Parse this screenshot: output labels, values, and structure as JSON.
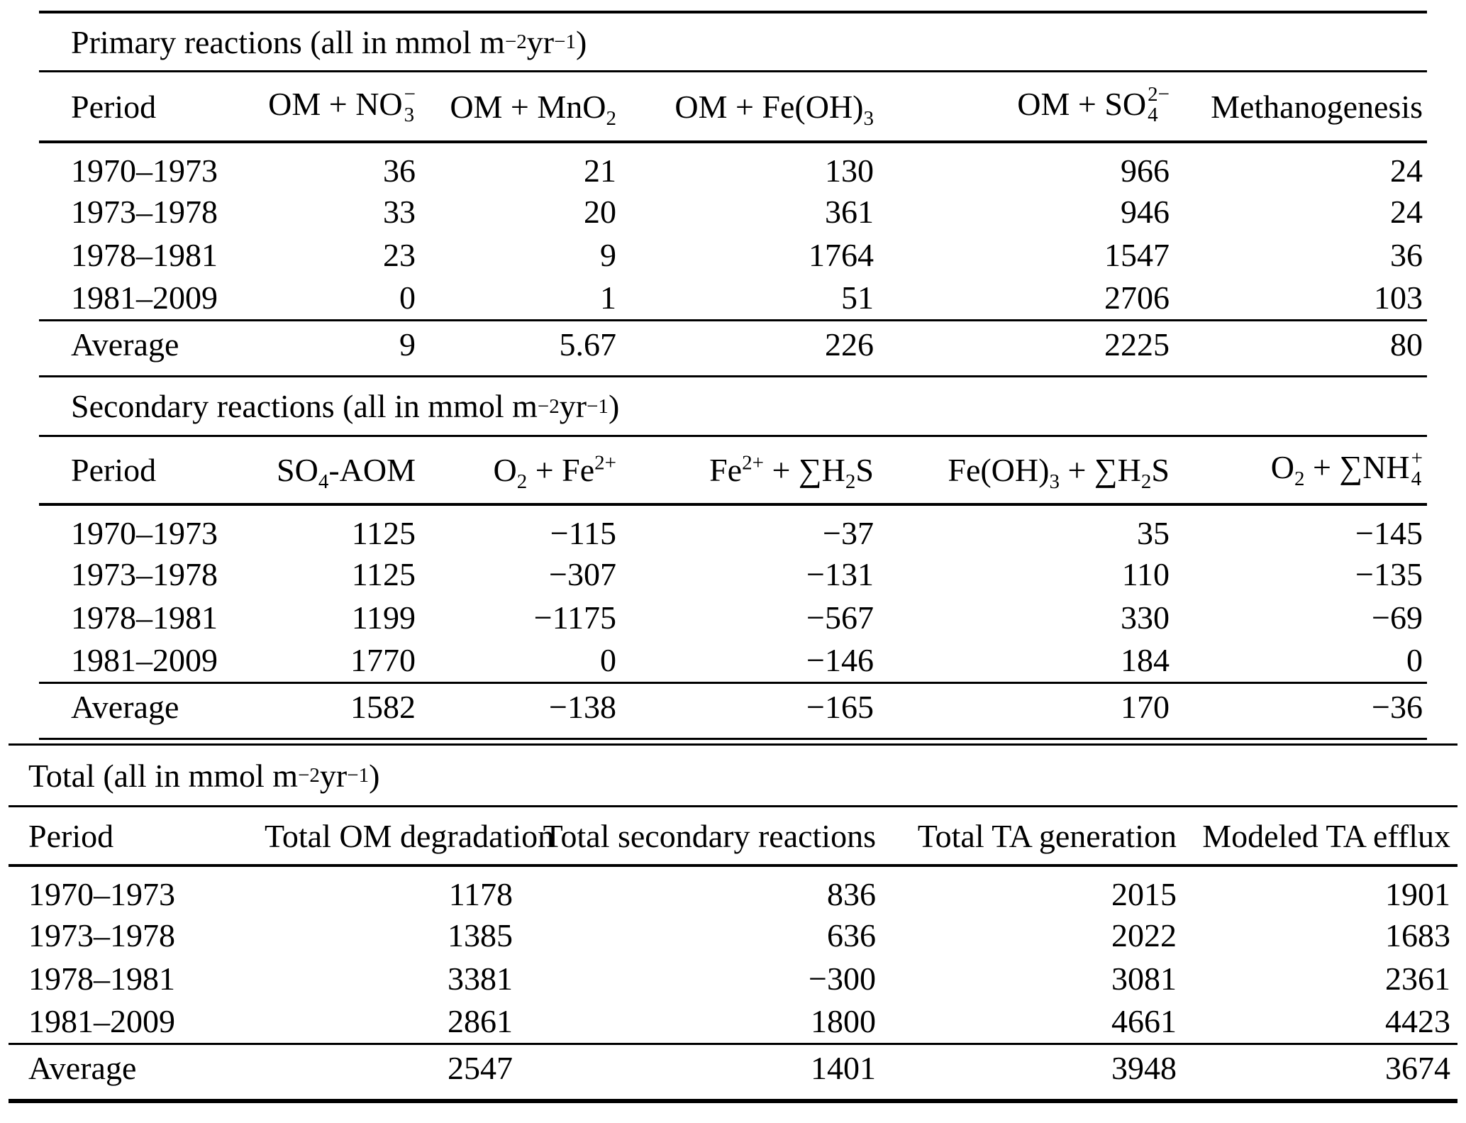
{
  "primary": {
    "title": "Primary reactions (all in mmol m<sup>−2</sup> yr<sup>−1</sup>)",
    "headers": [
      "Period",
      "OM + NO<span class='ss'><span>−</span><span>3</span></span>",
      "OM + MnO<sub>2</sub>",
      "OM + Fe(OH)<sub>3</sub>",
      "OM + SO<span class='ss'><span>2−</span><span>4</span></span>",
      "Methanogenesis"
    ],
    "rows": [
      [
        "1970–1973",
        "36",
        "21",
        "130",
        "966",
        "24"
      ],
      [
        "1973–1978",
        "33",
        "20",
        "361",
        "946",
        "24"
      ],
      [
        "1978–1981",
        "23",
        "9",
        "1764",
        "1547",
        "36"
      ],
      [
        "1981–2009",
        "0",
        "1",
        "51",
        "2706",
        "103"
      ]
    ],
    "average": [
      "Average",
      "9",
      "5.67",
      "226",
      "2225",
      "80"
    ]
  },
  "secondary": {
    "title": "Secondary reactions (all in mmol m<sup>−2</sup> yr<sup>−1</sup>)",
    "headers": [
      "Period",
      "SO<sub>4</sub>-AOM",
      "O<sub>2</sub> + Fe<sup>2+</sup>",
      "Fe<sup>2+</sup> + ∑H<sub>2</sub>S",
      "Fe(OH)<sub>3</sub> + ∑H<sub>2</sub>S",
      "O<sub>2</sub> + ∑NH<span class='ss'><span>+</span><span>4</span></span>"
    ],
    "rows": [
      [
        "1970–1973",
        "1125",
        "−115",
        "−37",
        "35",
        "−145"
      ],
      [
        "1973–1978",
        "1125",
        "−307",
        "−131",
        "110",
        "−135"
      ],
      [
        "1978–1981",
        "1199",
        "−1175",
        "−567",
        "330",
        "−69"
      ],
      [
        "1981–2009",
        "1770",
        "0",
        "−146",
        "184",
        "0"
      ]
    ],
    "average": [
      "Average",
      "1582",
      "−138",
      "−165",
      "170",
      "−36"
    ]
  },
  "total": {
    "title": "Total (all in mmol m<sup>−2</sup> yr<sup>−1</sup>)",
    "headers": [
      "Period",
      "Total OM degradation",
      "Total secondary reactions",
      "Total TA generation",
      "Modeled TA efflux"
    ],
    "rows": [
      [
        "1970–1973",
        "1178",
        "836",
        "2015",
        "1901"
      ],
      [
        "1973–1978",
        "1385",
        "636",
        "2022",
        "1683"
      ],
      [
        "1978–1981",
        "3381",
        "−300",
        "3081",
        "2361"
      ],
      [
        "1981–2009",
        "2861",
        "1800",
        "4661",
        "4423"
      ]
    ],
    "average": [
      "Average",
      "2547",
      "1401",
      "3948",
      "3674"
    ]
  }
}
